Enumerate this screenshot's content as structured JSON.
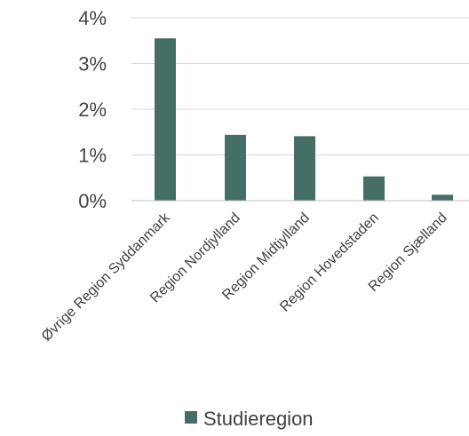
{
  "chart_data": {
    "type": "bar",
    "categories": [
      "Øvrige Region Syddanmark",
      "Region Nordjylland",
      "Region Midtjylland",
      "Region Hovedstaden",
      "Region Sjælland"
    ],
    "series": [
      {
        "name": "Studieregion",
        "values": [
          3.55,
          1.44,
          1.41,
          0.53,
          0.13
        ]
      }
    ],
    "y_tick_labels": [
      "0%",
      "1%",
      "2%",
      "3%",
      "4%"
    ],
    "ylim": [
      0,
      4
    ],
    "y_unit": "%",
    "grid": true,
    "legend_position": "bottom",
    "colors": {
      "bar": "#456E66",
      "grid": "#D9D9D9",
      "axis": "#BFBFBF"
    }
  }
}
